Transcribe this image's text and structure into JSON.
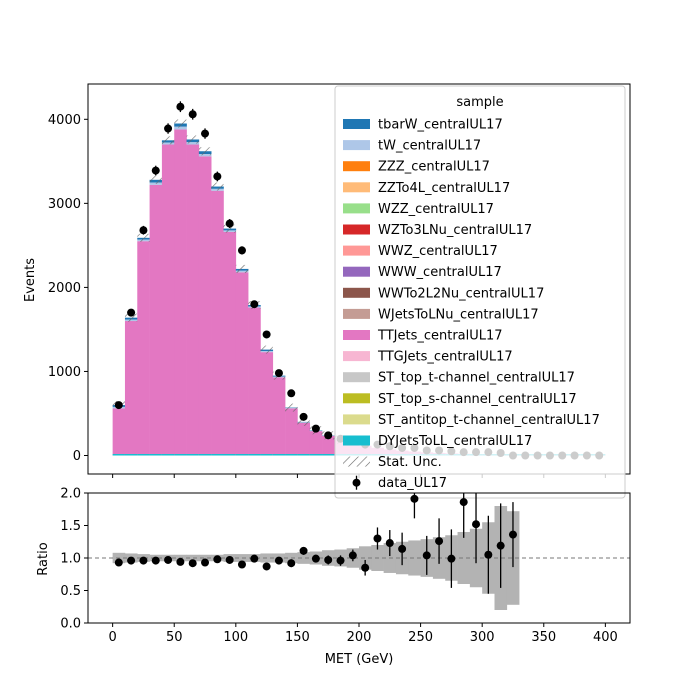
{
  "chart_data": [
    {
      "type": "bar",
      "panel": "main",
      "style": "stacked step histogram with data points",
      "xlabel": "",
      "ylabel": "Events",
      "xlim": [
        -20,
        420
      ],
      "ylim": [
        -220,
        4420
      ],
      "yticks": [
        0,
        1000,
        2000,
        3000,
        4000
      ],
      "xticks": [
        0,
        50,
        100,
        150,
        200,
        250,
        300,
        350,
        400
      ],
      "bin_edges": [
        0,
        10,
        20,
        30,
        40,
        50,
        60,
        70,
        80,
        90,
        100,
        110,
        120,
        130,
        140,
        150,
        160,
        170,
        180,
        190,
        200,
        210,
        220,
        230,
        240,
        250,
        260,
        270,
        280,
        290,
        300,
        310,
        320,
        330,
        340,
        350,
        360,
        370,
        380,
        390,
        400
      ],
      "stack_total": [
        600,
        1640,
        2590,
        3280,
        3750,
        3950,
        3760,
        3620,
        3200,
        2700,
        2220,
        1790,
        1260,
        950,
        570,
        400,
        300,
        240,
        190,
        150,
        120,
        95,
        75,
        60,
        50,
        40,
        32,
        26,
        22,
        18,
        15,
        12,
        10,
        8,
        6,
        5,
        4,
        3,
        3,
        2
      ],
      "ttjets": [
        560,
        1600,
        2550,
        3220,
        3700,
        3880,
        3700,
        3560,
        3150,
        2660,
        2180,
        1760,
        1230,
        930,
        560,
        390,
        290,
        232,
        184,
        145,
        116,
        92,
        72,
        58,
        48,
        38,
        30,
        25,
        21,
        17,
        14,
        11,
        9,
        7,
        5,
        4,
        3,
        2,
        2,
        1
      ],
      "data": [
        600,
        1700,
        2680,
        3390,
        3890,
        4150,
        4060,
        3830,
        3320,
        2760,
        2440,
        1800,
        1440,
        980,
        740,
        460,
        320,
        240,
        200,
        170,
        130,
        130,
        110,
        90,
        90,
        60,
        60,
        50,
        40,
        40,
        40,
        30,
        0,
        0,
        0,
        0,
        0,
        0,
        0,
        0
      ],
      "data_yerr": [
        25,
        41,
        52,
        58,
        62,
        64,
        64,
        62,
        58,
        53,
        49,
        42,
        38,
        31,
        27,
        21,
        18,
        15,
        14,
        13,
        11,
        11,
        10,
        9,
        9,
        8,
        8,
        7,
        6,
        6,
        6,
        5,
        0,
        0,
        0,
        0,
        0,
        0,
        0,
        0
      ],
      "legend": {
        "title": "sample",
        "placement": "upper right",
        "entries": [
          {
            "label": "tbarW_centralUL17",
            "color": "#1f77b4"
          },
          {
            "label": "tW_centralUL17",
            "color": "#aec7e8"
          },
          {
            "label": "ZZZ_centralUL17",
            "color": "#ff7f0e"
          },
          {
            "label": "ZZTo4L_centralUL17",
            "color": "#ffbb78"
          },
          {
            "label": "WZZ_centralUL17",
            "color": "#98df8a"
          },
          {
            "label": "WZTo3LNu_centralUL17",
            "color": "#d62728"
          },
          {
            "label": "WWZ_centralUL17",
            "color": "#ff9896"
          },
          {
            "label": "WWW_centralUL17",
            "color": "#9467bd"
          },
          {
            "label": "WWTo2L2Nu_centralUL17",
            "color": "#8c564b"
          },
          {
            "label": "WJetsToLNu_centralUL17",
            "color": "#c49c94"
          },
          {
            "label": "TTJets_centralUL17",
            "color": "#e377c2"
          },
          {
            "label": "TTGJets_centralUL17",
            "color": "#f7b6d2"
          },
          {
            "label": "ST_top_t-channel_centralUL17",
            "color": "#c7c7c7"
          },
          {
            "label": "ST_top_s-channel_centralUL17",
            "color": "#bcbd22"
          },
          {
            "label": "ST_antitop_t-channel_centralUL17",
            "color": "#dbdb8d"
          },
          {
            "label": "DYJetsToLL_centralUL17",
            "color": "#17becf"
          },
          {
            "label": "Stat. Unc.",
            "kind": "hatch"
          },
          {
            "label": "data_UL17",
            "kind": "marker"
          }
        ]
      }
    },
    {
      "type": "scatter",
      "panel": "ratio",
      "xlabel": "MET (GeV)",
      "ylabel": "Ratio",
      "xlim": [
        -20,
        420
      ],
      "ylim": [
        0.0,
        2.0
      ],
      "yticks": [
        "0.0",
        "0.5",
        "1.0",
        "1.5",
        "2.0"
      ],
      "xticks": [
        0,
        50,
        100,
        150,
        200,
        250,
        300,
        350,
        400
      ],
      "reference_line": 1.0,
      "x": [
        5,
        15,
        25,
        35,
        45,
        55,
        65,
        75,
        85,
        95,
        105,
        115,
        125,
        135,
        145,
        155,
        165,
        175,
        185,
        195,
        205,
        215,
        225,
        235,
        245,
        255,
        265,
        275,
        285,
        295,
        305,
        315,
        325
      ],
      "ratio": [
        0.93,
        0.96,
        0.96,
        0.96,
        0.97,
        0.94,
        0.92,
        0.93,
        0.98,
        0.97,
        0.9,
        0.99,
        0.87,
        0.96,
        0.92,
        1.11,
        0.99,
        0.97,
        0.96,
        1.04,
        0.85,
        1.3,
        1.23,
        1.14,
        1.91,
        1.04,
        1.26,
        0.99,
        1.86,
        1.52,
        1.05,
        1.19,
        1.36
      ],
      "ratio_err": [
        0.04,
        0.04,
        0.04,
        0.04,
        0.04,
        0.04,
        0.04,
        0.04,
        0.04,
        0.04,
        0.04,
        0.05,
        0.05,
        0.05,
        0.06,
        0.06,
        0.06,
        0.07,
        0.08,
        0.09,
        0.12,
        0.17,
        0.2,
        0.25,
        0.3,
        0.3,
        0.35,
        0.45,
        0.55,
        0.6,
        0.6,
        0.65,
        0.5
      ],
      "unc_band": [
        0.08,
        0.07,
        0.06,
        0.05,
        0.05,
        0.05,
        0.05,
        0.05,
        0.05,
        0.06,
        0.06,
        0.06,
        0.07,
        0.07,
        0.08,
        0.09,
        0.1,
        0.12,
        0.13,
        0.15,
        0.18,
        0.2,
        0.23,
        0.25,
        0.27,
        0.29,
        0.32,
        0.35,
        0.4,
        0.45,
        0.55,
        0.8,
        0.72
      ]
    }
  ]
}
